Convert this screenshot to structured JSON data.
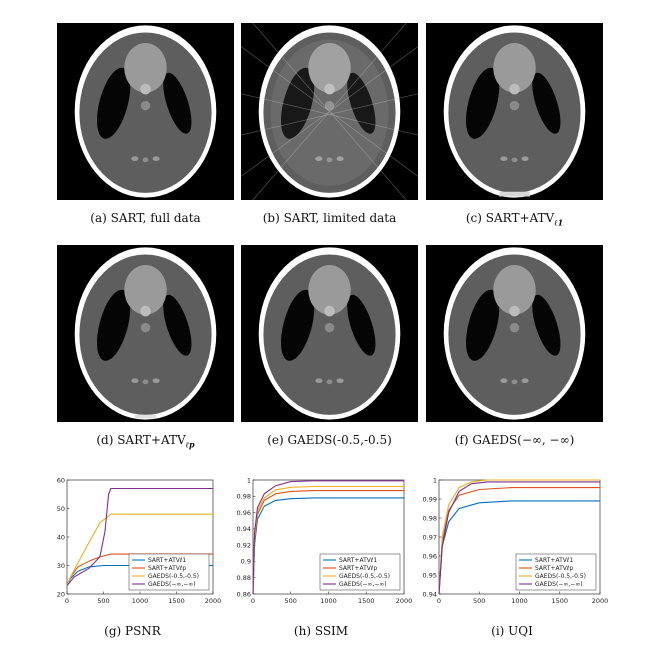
{
  "figure": {
    "captions": {
      "a": "(a) SART, full data",
      "b": "(b) SART, limited data",
      "c_main": "(c) SART+ATV",
      "c_sub": "ℓ1",
      "d_main": "(d) SART+ATV",
      "d_sub": "ℓp",
      "e": "(e) GAEDS(-0.5,-0.5)",
      "f": "(f) GAEDS(−∞, −∞)",
      "g": "(g) PSNR",
      "h": "(h) SSIM",
      "i": "(i) UQI"
    }
  },
  "colors": {
    "series1": "#0072BD",
    "series2": "#D95319",
    "series3": "#EDB120",
    "series4": "#7E2F8E"
  },
  "chart_data": [
    {
      "type": "line",
      "xlim": [
        0,
        2000
      ],
      "ylim": [
        20,
        60
      ],
      "xticks": [
        "0",
        "500",
        "1000",
        "1500",
        "2000"
      ],
      "yticks": [
        "20",
        "30",
        "40",
        "50",
        "60"
      ],
      "legend_position": "bottom-right",
      "series": [
        {
          "name": "SART+ATVℓ1",
          "x": [
            0,
            50,
            150,
            300,
            500,
            700,
            2000
          ],
          "y": [
            23,
            25.5,
            28,
            29.5,
            30,
            30,
            30
          ]
        },
        {
          "name": "SART+ATVℓp",
          "x": [
            0,
            50,
            150,
            300,
            450,
            600,
            2000
          ],
          "y": [
            23,
            26,
            29.5,
            31.5,
            33,
            34,
            34
          ]
        },
        {
          "name": "GAEDS(-0.5,-0.5)",
          "x": [
            0,
            50,
            150,
            300,
            450,
            600,
            700,
            2000
          ],
          "y": [
            23,
            26,
            31,
            38,
            45,
            48,
            48,
            48
          ]
        },
        {
          "name": "GAEDS(−∞,−∞)",
          "x": [
            0,
            100,
            300,
            450,
            520,
            570,
            600,
            2000
          ],
          "y": [
            23,
            26,
            29,
            33,
            42,
            55,
            57,
            57
          ]
        }
      ]
    },
    {
      "type": "line",
      "xlim": [
        0,
        2000
      ],
      "ylim": [
        0.86,
        1.0
      ],
      "xticks": [
        "0",
        "500",
        "1000",
        "1500",
        "2000"
      ],
      "yticks": [
        "0.86",
        "0.88",
        "0.9",
        "0.92",
        "0.94",
        "0.96",
        "0.98",
        "1"
      ],
      "legend_position": "bottom-right",
      "series": [
        {
          "name": "SART+ATVℓ1",
          "x": [
            0,
            20,
            60,
            150,
            300,
            500,
            800,
            2000
          ],
          "y": [
            0.86,
            0.92,
            0.952,
            0.968,
            0.975,
            0.977,
            0.978,
            0.978
          ]
        },
        {
          "name": "SART+ATVℓp",
          "x": [
            0,
            20,
            60,
            150,
            300,
            500,
            800,
            2000
          ],
          "y": [
            0.86,
            0.925,
            0.958,
            0.975,
            0.983,
            0.986,
            0.987,
            0.987
          ]
        },
        {
          "name": "GAEDS(-0.5,-0.5)",
          "x": [
            0,
            20,
            60,
            150,
            300,
            500,
            800,
            2000
          ],
          "y": [
            0.86,
            0.93,
            0.962,
            0.978,
            0.988,
            0.991,
            0.992,
            0.992
          ]
        },
        {
          "name": "GAEDS(−∞,−∞)",
          "x": [
            0,
            20,
            60,
            150,
            300,
            500,
            800,
            2000
          ],
          "y": [
            0.86,
            0.935,
            0.966,
            0.983,
            0.993,
            0.998,
            0.999,
            0.999
          ]
        }
      ]
    },
    {
      "type": "line",
      "xlim": [
        0,
        2000
      ],
      "ylim": [
        0.94,
        1.0
      ],
      "xticks": [
        "0",
        "500",
        "1000",
        "1500",
        "2000"
      ],
      "yticks": [
        "0.94",
        "0.95",
        "0.96",
        "0.97",
        "0.98",
        "0.99",
        "1"
      ],
      "legend_position": "bottom-right",
      "series": [
        {
          "name": "SART+ATVℓ1",
          "x": [
            0,
            40,
            120,
            250,
            500,
            900,
            2000
          ],
          "y": [
            0.94,
            0.965,
            0.978,
            0.985,
            0.988,
            0.989,
            0.989
          ]
        },
        {
          "name": "SART+ATVℓp",
          "x": [
            0,
            40,
            120,
            250,
            500,
            900,
            2000
          ],
          "y": [
            0.94,
            0.968,
            0.984,
            0.992,
            0.995,
            0.996,
            0.996
          ]
        },
        {
          "name": "GAEDS(-0.5,-0.5)",
          "x": [
            0,
            40,
            120,
            250,
            400,
            600,
            2000
          ],
          "y": [
            0.94,
            0.97,
            0.987,
            0.996,
            0.999,
            1.0,
            1.0
          ]
        },
        {
          "name": "GAEDS(−∞,−∞)",
          "x": [
            0,
            40,
            120,
            250,
            400,
            600,
            2000
          ],
          "y": [
            0.94,
            0.965,
            0.983,
            0.994,
            0.998,
            0.999,
            0.999
          ]
        }
      ]
    }
  ]
}
